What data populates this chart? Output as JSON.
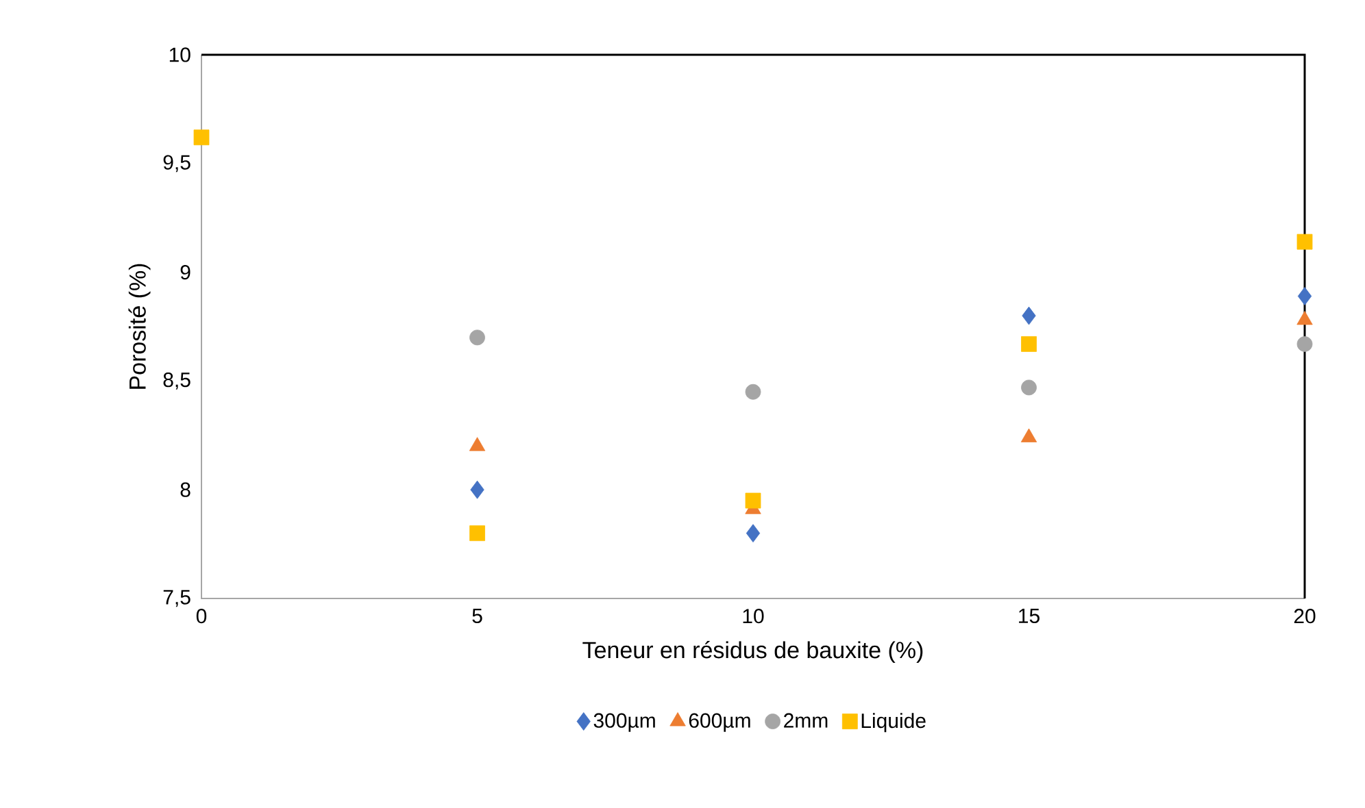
{
  "chart_data": {
    "type": "scatter",
    "xlabel": "Teneur en résidus de bauxite (%)",
    "ylabel": "Porosité (%)",
    "x": [
      0,
      5,
      10,
      15,
      20
    ],
    "series": [
      {
        "name": "300µm",
        "color": "#4472c4",
        "marker": "diamond",
        "values": [
          null,
          8.0,
          7.8,
          8.8,
          8.89
        ]
      },
      {
        "name": "600µm",
        "color": "#ed7d31",
        "marker": "triangle",
        "values": [
          null,
          8.2,
          7.91,
          8.24,
          8.78
        ]
      },
      {
        "name": "2mm",
        "color": "#a5a5a5",
        "marker": "circle",
        "values": [
          null,
          8.7,
          8.45,
          8.47,
          8.67
        ]
      },
      {
        "name": "Liquide",
        "color": "#ffc000",
        "marker": "square",
        "values": [
          9.62,
          7.8,
          7.95,
          8.67,
          9.14
        ]
      }
    ],
    "xlim": [
      0,
      20
    ],
    "xticks": [
      0,
      5,
      10,
      15,
      20
    ],
    "ylim": [
      7.5,
      10
    ],
    "yticks": [
      {
        "value": 7.5,
        "label": "7,5"
      },
      8,
      {
        "value": 8.5,
        "label": "8,5"
      },
      9,
      {
        "value": 9.5,
        "label": "9,5"
      },
      10
    ],
    "grid": false,
    "legend": "bottom"
  }
}
